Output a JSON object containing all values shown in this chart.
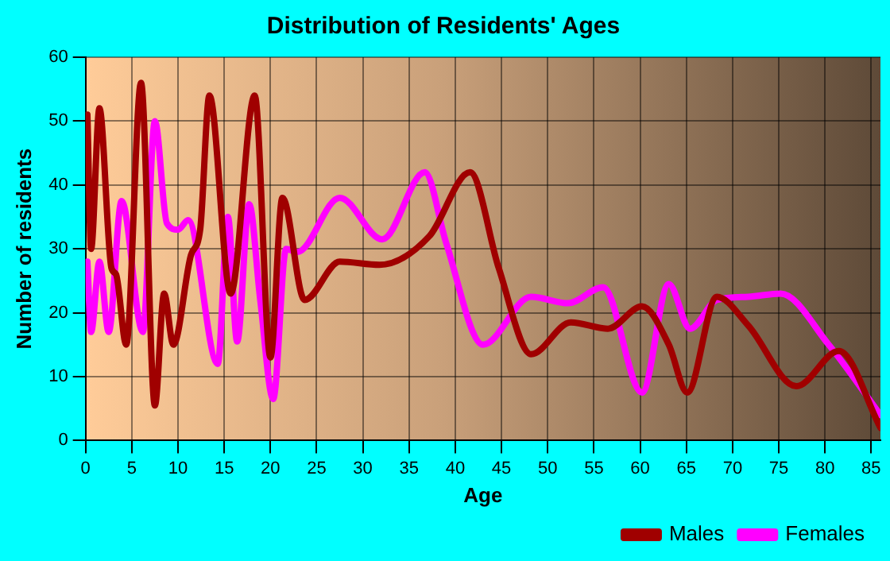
{
  "chart_data": {
    "type": "line",
    "title": "Distribution of Residents' Ages",
    "xlabel": "Age",
    "ylabel": "Number of residents",
    "xlim": [
      0,
      86
    ],
    "xticks": [
      0,
      5,
      10,
      15,
      20,
      25,
      30,
      35,
      40,
      45,
      50,
      55,
      60,
      65,
      70,
      75,
      80,
      85
    ],
    "ylim": [
      0,
      60
    ],
    "yticks": [
      0,
      10,
      20,
      30,
      40,
      50,
      60
    ],
    "grid": true,
    "legend": "bottom right",
    "marker": "none",
    "line_style": "solid",
    "series": [
      {
        "name": "Males",
        "color": "#a00000",
        "x": [
          0.2,
          0.6,
          1.5,
          2.8,
          3.3,
          4.4,
          6,
          7.5,
          8.5,
          9.5,
          11.4,
          12.4,
          13.4,
          15.7,
          18.3,
          20,
          21.3,
          23.7,
          27.5,
          31.8,
          37.2,
          41.6,
          44.7,
          48.2,
          52.5,
          56.5,
          60.2,
          63.1,
          65.1,
          68.3,
          71.7,
          76.9,
          81.5,
          86
        ],
        "values": [
          51,
          30,
          52,
          27,
          26,
          15,
          56,
          5.5,
          23,
          15,
          29,
          33,
          54,
          23,
          54,
          13,
          38,
          22,
          28,
          27.5,
          32,
          42,
          27,
          13.5,
          18.5,
          17.5,
          21,
          15,
          7.5,
          22.5,
          18,
          8.5,
          14,
          2
        ]
      },
      {
        "name": "Females",
        "color": "#ff00ff",
        "x": [
          0.2,
          0.6,
          1.5,
          2.5,
          3.9,
          6.2,
          7.5,
          8.8,
          10,
          11.1,
          14.3,
          15.4,
          16.4,
          17.7,
          18.9,
          20.3,
          21.7,
          22.9,
          27.5,
          32.1,
          36.7,
          39,
          43,
          48.2,
          52.2,
          56,
          60.2,
          63.1,
          65.4,
          68.3,
          71.7,
          75.2,
          80.4,
          86
        ],
        "values": [
          28,
          17,
          28,
          17,
          37.5,
          17,
          50,
          34,
          33,
          34.5,
          12,
          35,
          15.5,
          37,
          22,
          6.5,
          30,
          29.5,
          38,
          31.5,
          42,
          31,
          15,
          22.5,
          21.5,
          24,
          7.5,
          24.5,
          17.5,
          22,
          22.5,
          23,
          15,
          4
        ]
      }
    ]
  }
}
